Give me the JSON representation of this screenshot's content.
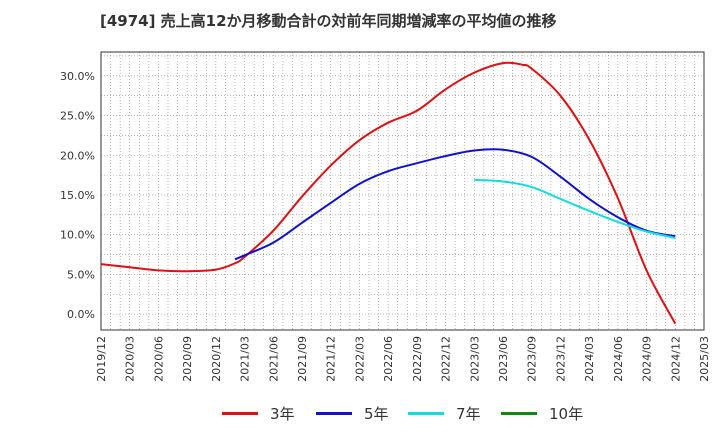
{
  "title": "[4974]  売上高12か月移動合計の対前年同期増減率の平均値の推移",
  "chart_data": {
    "type": "line",
    "x_ticks": [
      "2019/12",
      "2020/03",
      "2020/06",
      "2020/09",
      "2020/12",
      "2021/03",
      "2021/06",
      "2021/09",
      "2021/12",
      "2022/03",
      "2022/06",
      "2022/09",
      "2022/12",
      "2023/03",
      "2023/06",
      "2023/09",
      "2023/12",
      "2024/03",
      "2024/06",
      "2024/09",
      "2024/12",
      "2025/03"
    ],
    "y_ticks": [
      "0.0%",
      "5.0%",
      "10.0%",
      "15.0%",
      "20.0%",
      "25.0%",
      "30.0%"
    ],
    "ylim": [
      -2.0,
      33.0
    ],
    "grid": true,
    "legend_position": "bottom",
    "series": [
      {
        "name": "3年",
        "color": "#dd1111",
        "x": [
          "2019/12",
          "2020/03",
          "2020/06",
          "2020/09",
          "2020/12",
          "2021/02",
          "2021/03",
          "2021/06",
          "2021/09",
          "2021/12",
          "2022/03",
          "2022/06",
          "2022/09",
          "2022/12",
          "2023/03",
          "2023/06",
          "2023/08",
          "2023/09",
          "2023/12",
          "2024/03",
          "2024/06",
          "2024/09",
          "2024/12"
        ],
        "values": [
          6.3,
          5.9,
          5.5,
          5.4,
          5.6,
          6.4,
          7.2,
          10.5,
          14.8,
          18.7,
          21.9,
          24.1,
          25.6,
          28.3,
          30.4,
          31.6,
          31.4,
          30.9,
          27.5,
          22.0,
          14.6,
          5.5,
          -1.2
        ]
      },
      {
        "name": "5年",
        "color": "#1111cc",
        "x": [
          "2021/02",
          "2021/03",
          "2021/06",
          "2021/09",
          "2021/12",
          "2022/03",
          "2022/06",
          "2022/09",
          "2022/12",
          "2023/03",
          "2023/06",
          "2023/09",
          "2023/12",
          "2024/03",
          "2024/06",
          "2024/09",
          "2024/12"
        ],
        "values": [
          6.9,
          7.4,
          9.0,
          11.5,
          14.0,
          16.4,
          18.0,
          19.0,
          19.9,
          20.6,
          20.7,
          19.8,
          17.3,
          14.5,
          12.2,
          10.5,
          9.8
        ]
      },
      {
        "name": "7年",
        "color": "#11dddd",
        "x": [
          "2023/03",
          "2023/06",
          "2023/09",
          "2023/12",
          "2024/03",
          "2024/06",
          "2024/09",
          "2024/12"
        ],
        "values": [
          16.9,
          16.7,
          16.0,
          14.5,
          13.0,
          11.6,
          10.4,
          9.6
        ]
      },
      {
        "name": "10年",
        "color": "#118811",
        "x": [],
        "values": []
      }
    ]
  }
}
